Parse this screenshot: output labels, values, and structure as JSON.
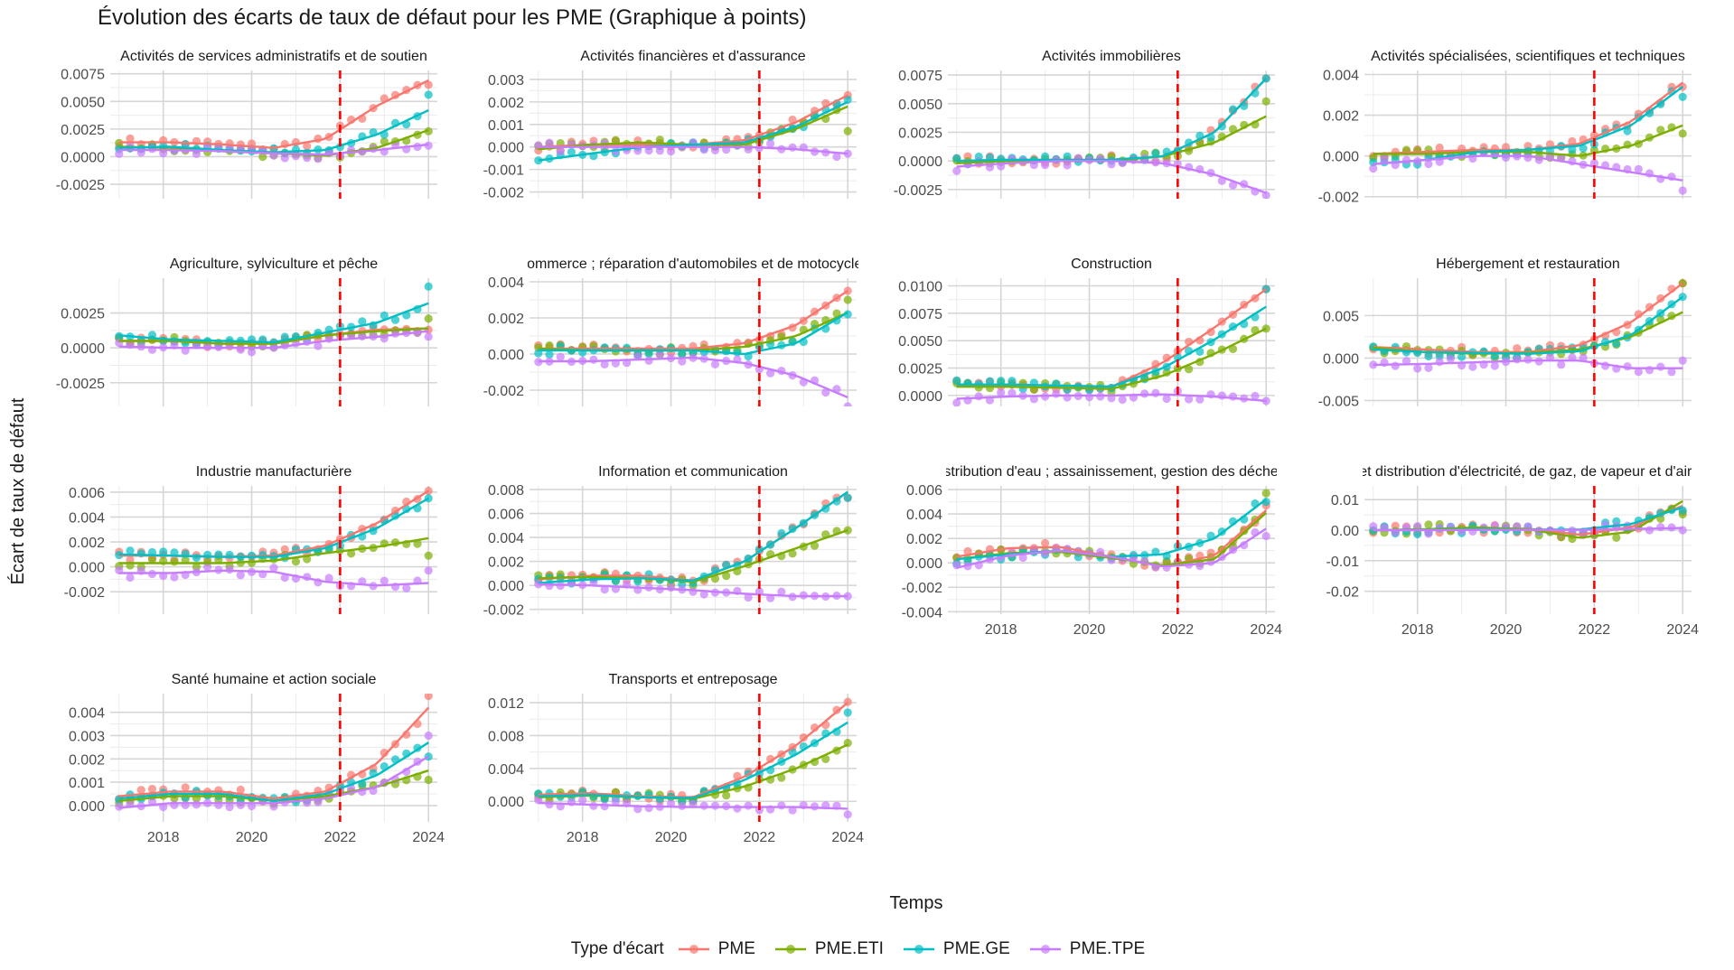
{
  "chart_data": {
    "type": "scatter",
    "title": "Évolution des écarts de taux de défaut pour les PME (Graphique à points)",
    "xlabel": "Temps",
    "ylabel": "Écart de taux de défaut",
    "x_ticks": [
      "2018",
      "2020",
      "2022",
      "2024"
    ],
    "x_range": [
      2016.8,
      2024.2
    ],
    "vline_x": 2022,
    "grid": true,
    "legend_position": "bottom",
    "legend_title": "Type d'écart",
    "series": [
      {
        "name": "PME",
        "color": "#F8766D"
      },
      {
        "name": "PME.ETI",
        "color": "#7CAE00"
      },
      {
        "name": "PME.GE",
        "color": "#00BFC4"
      },
      {
        "name": "PME.TPE",
        "color": "#C77CFF"
      }
    ],
    "panels": [
      {
        "title": "Activités de services administratifs et de soutien",
        "ylim": [
          -0.0038,
          0.0078
        ],
        "y_ticks": [
          -0.0025,
          0,
          0.0025,
          0.005,
          0.0075
        ],
        "y_tick_labels": [
          "-0.0025",
          "0.0000",
          "0.0025",
          "0.0050",
          "0.0075"
        ],
        "trends": [
          [
            0.0013,
            0.0013,
            0.0011,
            0.0008,
            0.0016,
            0.0046,
            0.0069
          ],
          [
            0.0009,
            0.0008,
            0.0005,
            0.0003,
            0.0001,
            0.0008,
            0.0024
          ],
          [
            0.0008,
            0.0009,
            0.0006,
            0.0004,
            0.0006,
            0.002,
            0.0042
          ],
          [
            0.0006,
            0.0006,
            0.0005,
            0.0003,
            0.0002,
            0.0006,
            0.0011
          ]
        ],
        "ends": [
          0.0065,
          0.0023,
          0.0056,
          0.001
        ]
      },
      {
        "title": "Activités financières et d'assurance",
        "ylim": [
          -0.0023,
          0.0034
        ],
        "y_ticks": [
          -0.002,
          -0.001,
          0,
          0.001,
          0.002,
          0.003
        ],
        "y_tick_labels": [
          "-0.002",
          "-0.001",
          "0.000",
          "0.001",
          "0.002",
          "0.003"
        ],
        "trends": [
          [
            0.0,
            0.0001,
            0.0001,
            0.0001,
            0.0003,
            0.0011,
            0.0023
          ],
          [
            -0.0001,
            0.0001,
            0.0002,
            0.0001,
            0.0001,
            0.0008,
            0.0018
          ],
          [
            -0.0006,
            -0.0003,
            0.0,
            0.0001,
            0.0002,
            0.0009,
            0.002
          ],
          [
            0.0,
            0.0,
            0.0,
            0.0,
            0.0,
            -0.0001,
            -0.0003
          ]
        ],
        "ends": [
          0.0023,
          0.0007,
          0.0021,
          -0.0003
        ]
      },
      {
        "title": "Activités immobilières",
        "ylim": [
          -0.0033,
          0.0079
        ],
        "y_ticks": [
          -0.0025,
          0,
          0.0025,
          0.005,
          0.0075
        ],
        "y_tick_labels": [
          "-0.0025",
          "0.0000",
          "0.0025",
          "0.0050",
          "0.0075"
        ],
        "trends": [
          [
            0.0,
            0.0001,
            0.0001,
            0.0001,
            0.0004,
            0.0025,
            0.0072
          ],
          [
            -0.0002,
            0.0,
            0.0,
            0.0,
            0.0004,
            0.0016,
            0.0039
          ],
          [
            0.0,
            0.0001,
            0.0001,
            0.0001,
            0.0004,
            0.0025,
            0.0072
          ],
          [
            -0.0005,
            -0.0002,
            0.0,
            0.0,
            -0.0002,
            -0.0012,
            -0.0028
          ]
        ],
        "ends": [
          0.0072,
          0.0052,
          0.0072,
          -0.003
        ]
      },
      {
        "title": "Activités spécialisées, scientifiques et techniques",
        "ylim": [
          -0.0021,
          0.0042
        ],
        "y_ticks": [
          -0.002,
          0,
          0.002,
          0.004
        ],
        "y_tick_labels": [
          "-0.002",
          "0.000",
          "0.002",
          "0.004"
        ],
        "trends": [
          [
            0.0001,
            0.0002,
            0.0003,
            0.0003,
            0.0006,
            0.0017,
            0.0036
          ],
          [
            0.0001,
            0.0001,
            0.0002,
            0.0002,
            0.0,
            0.0005,
            0.0015
          ],
          [
            -0.0004,
            -0.0002,
            0.0002,
            0.0003,
            0.0005,
            0.0015,
            0.0034
          ],
          [
            -0.0004,
            -0.0002,
            0.0,
            0.0,
            -0.0004,
            -0.0008,
            -0.0012
          ]
        ],
        "ends": [
          0.0034,
          0.0011,
          0.0029,
          -0.0017
        ]
      },
      {
        "title": "Agriculture, sylviculture et pêche",
        "ylim": [
          -0.0042,
          0.005
        ],
        "y_ticks": [
          -0.0025,
          0,
          0.0025
        ],
        "y_tick_labels": [
          "-0.0025",
          "0.0000",
          "0.0025"
        ],
        "trends": [
          [
            0.0005,
            0.0005,
            0.0003,
            0.0003,
            0.0009,
            0.0013,
            0.0014
          ],
          [
            0.0005,
            0.0005,
            0.0003,
            0.0003,
            0.0009,
            0.0012,
            0.0014
          ],
          [
            0.0009,
            0.0006,
            0.0005,
            0.0004,
            0.0011,
            0.0018,
            0.0032
          ],
          [
            0.0001,
            0.0,
            0.0,
            0.0,
            0.0005,
            0.0008,
            0.0012
          ]
        ],
        "ends": [
          0.0013,
          0.0021,
          0.0044,
          0.0008
        ]
      },
      {
        "title": "Commerce ; réparation d'automobiles et de motocycles",
        "ylim": [
          -0.0029,
          0.0042
        ],
        "y_ticks": [
          -0.002,
          0,
          0.002,
          0.004
        ],
        "y_tick_labels": [
          "-0.002",
          "0.000",
          "0.002",
          "0.004"
        ],
        "trends": [
          [
            0.0003,
            0.0003,
            0.0003,
            0.0003,
            0.0006,
            0.0016,
            0.0035
          ],
          [
            0.0003,
            0.0002,
            0.0002,
            0.0002,
            0.0004,
            0.001,
            0.0023
          ],
          [
            0.0002,
            0.0002,
            0.0002,
            0.0002,
            0.0,
            0.0006,
            0.0023
          ],
          [
            -0.0004,
            -0.0004,
            -0.0003,
            -0.0002,
            -0.0005,
            -0.0012,
            -0.0024
          ]
        ],
        "ends": [
          0.0035,
          0.003,
          0.0022,
          -0.0029
        ]
      },
      {
        "title": "Construction",
        "ylim": [
          -0.001,
          0.0107
        ],
        "y_ticks": [
          0,
          0.0025,
          0.005,
          0.0075,
          0.01
        ],
        "y_tick_labels": [
          "0.0000",
          "0.0025",
          "0.0050",
          "0.0075",
          "0.0100"
        ],
        "trends": [
          [
            0.001,
            0.001,
            0.0009,
            0.0008,
            0.003,
            0.0062,
            0.0097
          ],
          [
            0.0008,
            0.0008,
            0.0007,
            0.0006,
            0.0018,
            0.0038,
            0.0061
          ],
          [
            0.001,
            0.001,
            0.0009,
            0.0008,
            0.0025,
            0.0051,
            0.0081
          ],
          [
            -0.0003,
            -0.0001,
            0.0,
            0.0,
            0.0001,
            -0.0001,
            -0.0005
          ]
        ],
        "ends": [
          0.0097,
          0.0061,
          0.0097,
          -0.0005
        ]
      },
      {
        "title": "Hébergement et restauration",
        "ylim": [
          -0.0057,
          0.0094
        ],
        "y_ticks": [
          -0.005,
          0,
          0.005
        ],
        "y_tick_labels": [
          "-0.005",
          "0.000",
          "0.005"
        ],
        "trends": [
          [
            0.0013,
            0.001,
            0.0007,
            0.0007,
            0.0015,
            0.0042,
            0.0088
          ],
          [
            0.0012,
            0.0007,
            0.0005,
            0.0006,
            0.001,
            0.0025,
            0.0054
          ],
          [
            0.001,
            0.0007,
            0.0006,
            0.0005,
            0.0008,
            0.0027,
            0.0072
          ],
          [
            -0.0008,
            -0.0007,
            -0.0005,
            -0.0003,
            -0.0003,
            -0.0012,
            -0.0012
          ]
        ],
        "ends": [
          0.0088,
          0.0088,
          0.0072,
          -0.0003
        ]
      },
      {
        "title": "Industrie manufacturière",
        "ylim": [
          -0.0038,
          0.0065
        ],
        "y_ticks": [
          -0.002,
          0,
          0.002,
          0.004,
          0.006
        ],
        "y_tick_labels": [
          "-0.002",
          "0.000",
          "0.002",
          "0.004",
          "0.006"
        ],
        "trends": [
          [
            0.0009,
            0.0009,
            0.0008,
            0.0009,
            0.0017,
            0.0035,
            0.0061
          ],
          [
            0.0003,
            0.0003,
            0.0003,
            0.0005,
            0.0011,
            0.0016,
            0.0023
          ],
          [
            0.001,
            0.0009,
            0.0008,
            0.0008,
            0.0015,
            0.0031,
            0.0055
          ],
          [
            -0.0005,
            -0.0005,
            -0.0003,
            -0.0004,
            -0.0012,
            -0.0015,
            -0.0013
          ]
        ],
        "ends": [
          0.0061,
          0.0009,
          0.0055,
          -0.0003
        ]
      },
      {
        "title": "Information et communication",
        "ylim": [
          -0.0024,
          0.0083
        ],
        "y_ticks": [
          -0.002,
          0,
          0.002,
          0.004,
          0.006,
          0.008
        ],
        "y_tick_labels": [
          "-0.002",
          "0.000",
          "0.002",
          "0.004",
          "0.006",
          "0.008"
        ],
        "trends": [
          [
            0.0005,
            0.0008,
            0.0008,
            0.0004,
            0.002,
            0.0048,
            0.0078
          ],
          [
            0.0006,
            0.0007,
            0.0006,
            0.0003,
            0.0016,
            0.0031,
            0.0046
          ],
          [
            0.0002,
            0.0005,
            0.0006,
            0.0004,
            0.002,
            0.0048,
            0.0078
          ],
          [
            0.0001,
            0.0,
            -0.0002,
            -0.0004,
            -0.0007,
            -0.0009,
            -0.0009
          ]
        ],
        "ends": [
          0.0073,
          0.0046,
          0.0073,
          -0.0009
        ]
      },
      {
        "title": "Production et distribution d'eau ; assainissement, gestion des déchets et dépollution",
        "ylim": [
          -0.0042,
          0.0063
        ],
        "y_ticks": [
          -0.004,
          -0.002,
          0,
          0.002,
          0.004,
          0.006
        ],
        "y_tick_labels": [
          "-0.004",
          "-0.002",
          "0.000",
          "0.002",
          "0.004",
          "0.006"
        ],
        "trends": [
          [
            0.0005,
            0.0012,
            0.0013,
            0.0005,
            -0.0003,
            0.0006,
            0.0043
          ],
          [
            0.0003,
            0.0008,
            0.0009,
            0.0004,
            -0.0002,
            0.0003,
            0.0041
          ],
          [
            0.0003,
            0.0007,
            0.001,
            0.0005,
            0.0007,
            0.002,
            0.0052
          ],
          [
            -0.0004,
            0.0006,
            0.001,
            0.0005,
            -0.0003,
            0.0,
            0.0028
          ]
        ],
        "ends": [
          0.0047,
          0.0057,
          0.005,
          0.0022
        ]
      },
      {
        "title": "Production et distribution d'électricité, de gaz, de vapeur et d'air conditionné",
        "ylim": [
          -0.0275,
          0.0145
        ],
        "y_ticks": [
          -0.02,
          -0.01,
          0,
          0.01
        ],
        "y_tick_labels": [
          "-0.02",
          "-0.01",
          "0.00",
          "0.01"
        ],
        "trends": [
          [
            0.0,
            0.0002,
            0.0006,
            0.0005,
            -0.0015,
            0.001,
            0.008
          ],
          [
            0.0,
            0.0003,
            0.0009,
            0.0003,
            -0.0025,
            -0.0005,
            0.0095
          ],
          [
            0.0,
            0.0001,
            0.0003,
            0.0002,
            0.0002,
            0.002,
            0.0075
          ],
          [
            0.0,
            0.0,
            0.0001,
            0.0001,
            0.0001,
            0.0004,
            0.0007
          ]
        ],
        "ends": [
          0.006,
          0.0052,
          0.0065,
          0.0
        ]
      },
      {
        "title": "Santé humaine et action sociale",
        "ylim": [
          -0.0007,
          0.0048
        ],
        "y_ticks": [
          0,
          0.001,
          0.002,
          0.003,
          0.004
        ],
        "y_tick_labels": [
          "0.000",
          "0.001",
          "0.002",
          "0.003",
          "0.004"
        ],
        "trends": [
          [
            0.0004,
            0.0006,
            0.0006,
            0.0003,
            0.0006,
            0.0018,
            0.0042
          ],
          [
            0.0002,
            0.0004,
            0.0004,
            0.0002,
            0.0004,
            0.0008,
            0.0015
          ],
          [
            0.0003,
            0.0005,
            0.0005,
            0.0002,
            0.0005,
            0.0013,
            0.0027
          ],
          [
            -0.0001,
            0.0001,
            0.0001,
            0.0001,
            0.0003,
            0.0008,
            0.0021
          ]
        ],
        "ends": [
          0.0047,
          0.0011,
          0.0021,
          0.003
        ]
      },
      {
        "title": "Transports et entreposage",
        "ylim": [
          -0.0025,
          0.0131
        ],
        "y_ticks": [
          0,
          0.004,
          0.008,
          0.012
        ],
        "y_tick_labels": [
          "0.000",
          "0.004",
          "0.008",
          "0.012"
        ],
        "trends": [
          [
            0.0008,
            0.001,
            0.0006,
            0.0005,
            0.003,
            0.0068,
            0.012
          ],
          [
            0.0005,
            0.0007,
            0.0005,
            0.0003,
            0.0018,
            0.004,
            0.0069
          ],
          [
            0.0006,
            0.0008,
            0.0005,
            0.0004,
            0.0026,
            0.0057,
            0.0096
          ],
          [
            -0.0002,
            -0.0004,
            -0.0006,
            -0.0007,
            -0.0007,
            -0.0007,
            -0.0009
          ]
        ],
        "ends": [
          0.0121,
          0.0071,
          0.0108,
          -0.0016
        ]
      }
    ]
  }
}
